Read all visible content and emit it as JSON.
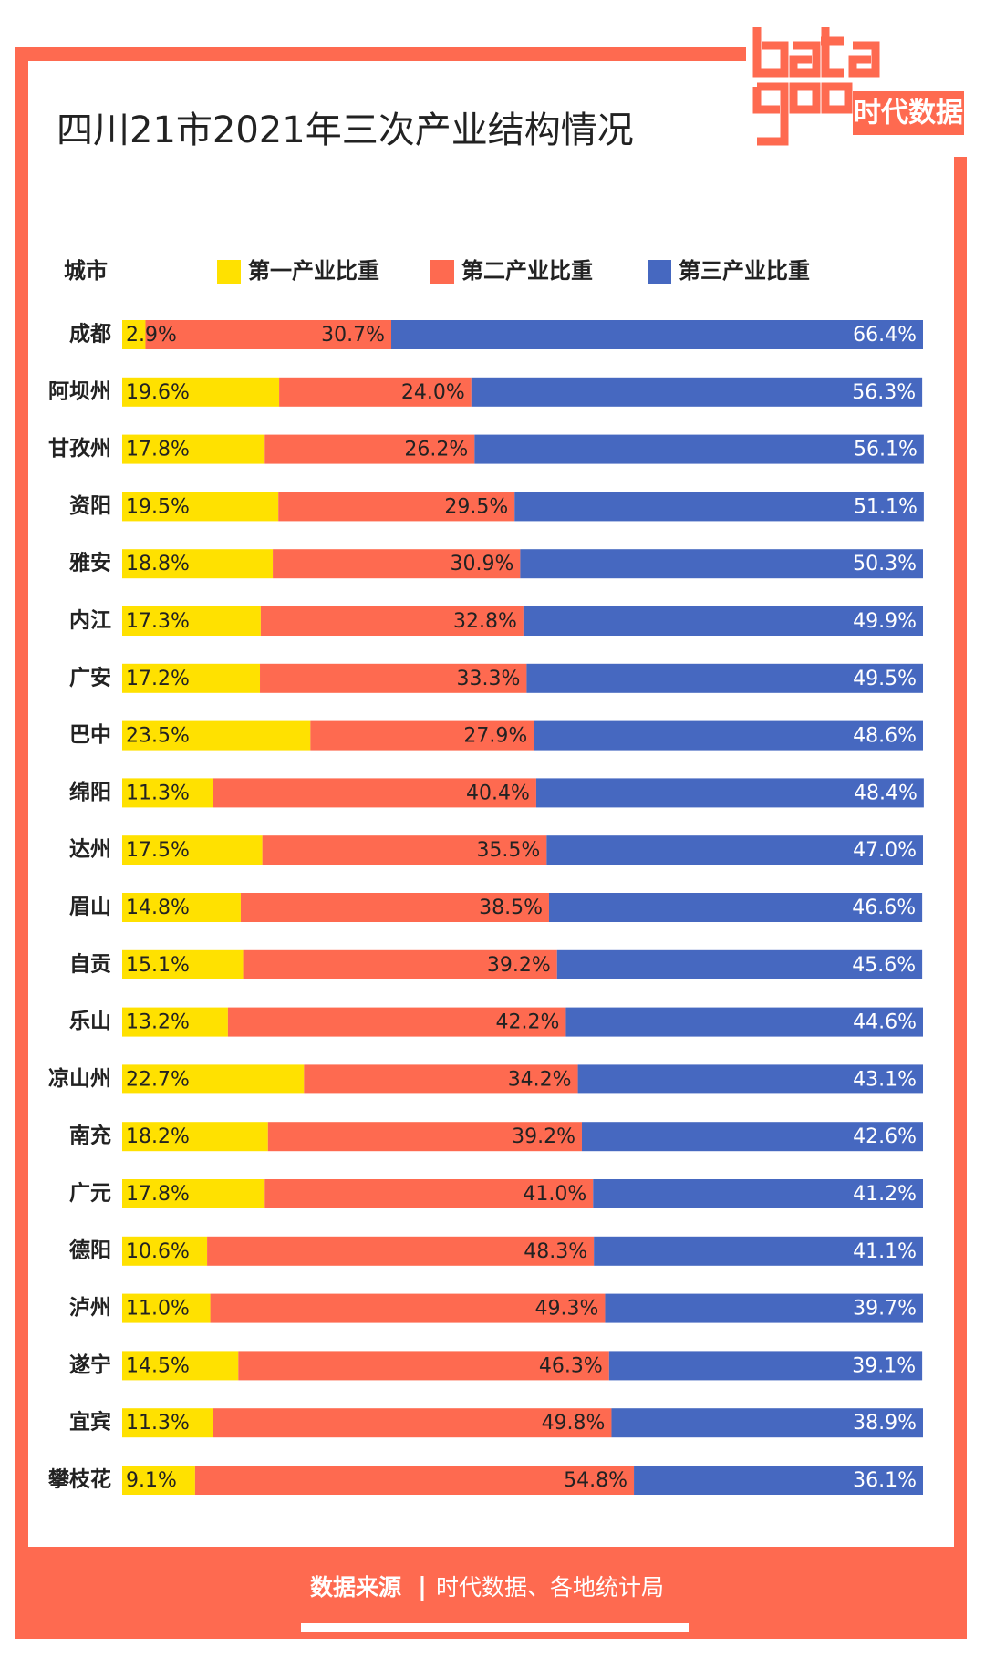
{
  "chart_data": {
    "type": "bar",
    "orientation": "horizontal",
    "stacked": true,
    "title": "四川21市2021年三次产业结构情况",
    "logo_text": "时代数据",
    "category_label": "城市",
    "categories": [
      "成都",
      "阿坝州",
      "甘孜州",
      "资阳",
      "雅安",
      "内江",
      "广安",
      "巴中",
      "绵阳",
      "达州",
      "眉山",
      "自贡",
      "乐山",
      "凉山州",
      "南充",
      "广元",
      "德阳",
      "泸州",
      "遂宁",
      "宜宾",
      "攀枝花"
    ],
    "xlim": [
      0,
      100
    ],
    "series": [
      {
        "name": "第一产业比重",
        "color": "#ffe100",
        "values": [
          2.9,
          19.6,
          17.8,
          19.5,
          18.8,
          17.3,
          17.2,
          23.5,
          11.3,
          17.5,
          14.8,
          15.1,
          13.2,
          22.7,
          18.2,
          17.8,
          10.6,
          11.0,
          14.5,
          11.3,
          9.1
        ],
        "value_labels": [
          "2.9%",
          "19.6%",
          "17.8%",
          "19.5%",
          "18.8%",
          "17.3%",
          "17.2%",
          "23.5%",
          "11.3%",
          "17.5%",
          "14.8%",
          "15.1%",
          "13.2%",
          "22.7%",
          "18.2%",
          "17.8%",
          "10.6%",
          "11.0%",
          "14.5%",
          "11.3%",
          "9.1%"
        ]
      },
      {
        "name": "第二产业比重",
        "color": "#fe6a50",
        "values": [
          30.7,
          24.0,
          26.2,
          29.5,
          30.9,
          32.8,
          33.3,
          27.9,
          40.4,
          35.5,
          38.5,
          39.2,
          42.2,
          34.2,
          39.2,
          41.0,
          48.3,
          49.3,
          46.3,
          49.8,
          54.8
        ],
        "value_labels": [
          "30.7%",
          "24.0%",
          "26.2%",
          "29.5%",
          "30.9%",
          "32.8%",
          "33.3%",
          "27.9%",
          "40.4%",
          "35.5%",
          "38.5%",
          "39.2%",
          "42.2%",
          "34.2%",
          "39.2%",
          "41.0%",
          "48.3%",
          "49.3%",
          "46.3%",
          "49.8%",
          "54.8%"
        ]
      },
      {
        "name": "第三产业比重",
        "color": "#4668c0",
        "values": [
          66.4,
          56.3,
          56.1,
          51.1,
          50.3,
          49.9,
          49.5,
          48.6,
          48.4,
          47.0,
          46.6,
          45.6,
          44.6,
          43.1,
          42.6,
          41.2,
          41.1,
          39.7,
          39.1,
          38.9,
          36.1
        ],
        "value_labels": [
          "66.4%",
          "56.3%",
          "56.1%",
          "51.1%",
          "50.3%",
          "49.9%",
          "49.5%",
          "48.6%",
          "48.4%",
          "47.0%",
          "46.6%",
          "45.6%",
          "44.6%",
          "43.1%",
          "42.6%",
          "41.2%",
          "41.1%",
          "39.7%",
          "39.1%",
          "38.9%",
          "36.1%"
        ]
      }
    ],
    "source_label": "数据来源",
    "source": "时代数据、各地统计局"
  }
}
